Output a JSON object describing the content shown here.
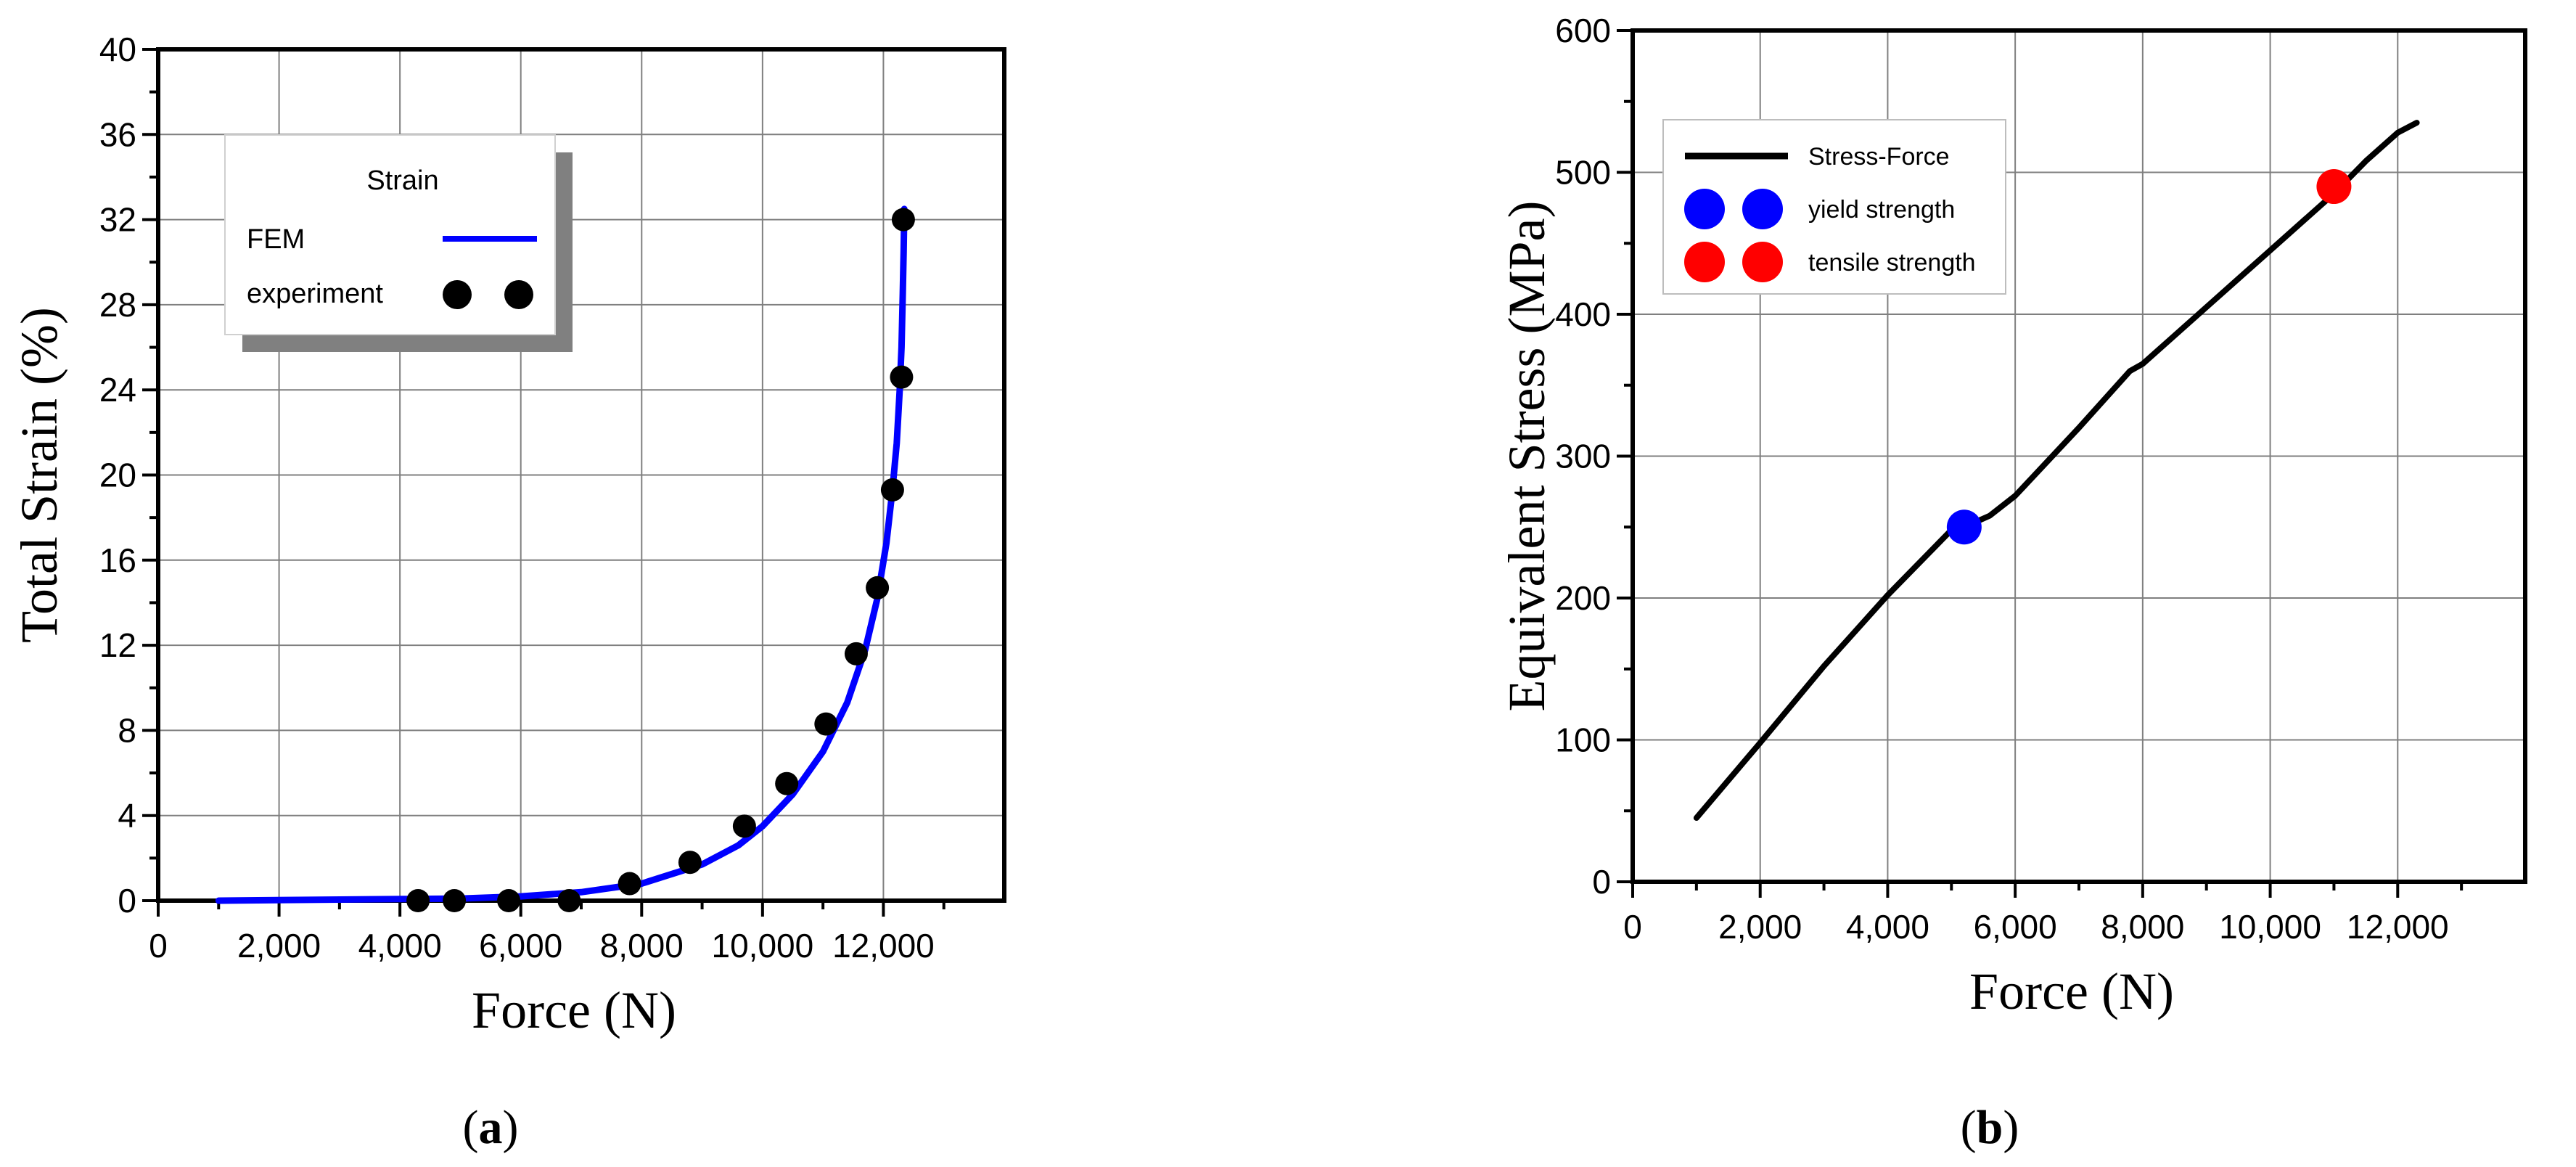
{
  "chart_data": [
    {
      "type": "line",
      "xlabel": "Force (N)",
      "ylabel": "Total Strain (%)",
      "xlim": [
        0,
        14000
      ],
      "ylim": [
        0,
        40
      ],
      "x_ticks": [
        0,
        2000,
        4000,
        6000,
        8000,
        10000,
        12000
      ],
      "x_tick_labels": [
        "0",
        "2,000",
        "4,000",
        "6,000",
        "8,000",
        "10,000",
        "12,000"
      ],
      "y_ticks": [
        0,
        4,
        8,
        12,
        16,
        20,
        24,
        28,
        32,
        36,
        40
      ],
      "y_tick_labels": [
        "0",
        "4",
        "8",
        "12",
        "16",
        "20",
        "24",
        "28",
        "32",
        "36",
        "40"
      ],
      "grid": true,
      "legend": {
        "title": "Strain",
        "placement": "top-left",
        "entries": [
          {
            "label": "FEM",
            "kind": "line",
            "color": "#0000ff"
          },
          {
            "label": "experiment",
            "kind": "marker",
            "color": "#000000"
          }
        ]
      },
      "series": [
        {
          "name": "FEM",
          "kind": "line",
          "color": "#0000ff",
          "x": [
            1000,
            3000,
            5000,
            6000,
            7000,
            8000,
            9000,
            9600,
            10000,
            10500,
            11000,
            11400,
            11700,
            11900,
            12050,
            12150,
            12220,
            12270,
            12300,
            12320,
            12335,
            12345
          ],
          "y": [
            0.0,
            0.05,
            0.1,
            0.2,
            0.4,
            0.8,
            1.7,
            2.6,
            3.5,
            5.0,
            7.0,
            9.3,
            11.8,
            14.2,
            16.8,
            19.3,
            21.5,
            24.0,
            26.0,
            28.5,
            30.5,
            32.5
          ]
        },
        {
          "name": "experiment",
          "kind": "scatter",
          "color": "#000000",
          "x": [
            4300,
            4900,
            5800,
            6800,
            7800,
            8800,
            9700,
            10400,
            11050,
            11550,
            11900,
            12150,
            12300,
            12330
          ],
          "y": [
            0.0,
            0.0,
            0.0,
            0.0,
            0.8,
            1.8,
            3.5,
            5.5,
            8.3,
            11.6,
            14.7,
            19.3,
            24.6,
            32.0
          ]
        }
      ],
      "caption": "(a)"
    },
    {
      "type": "line",
      "xlabel": "Force (N)",
      "ylabel": "Equivalent Stress (MPa)",
      "xlim": [
        0,
        14000
      ],
      "ylim": [
        0,
        600
      ],
      "x_ticks": [
        0,
        2000,
        4000,
        6000,
        8000,
        10000,
        12000
      ],
      "x_tick_labels": [
        "0",
        "2,000",
        "4,000",
        "6,000",
        "8,000",
        "10,000",
        "12,000"
      ],
      "y_ticks": [
        0,
        100,
        200,
        300,
        400,
        500,
        600
      ],
      "y_tick_labels": [
        "0",
        "100",
        "200",
        "300",
        "400",
        "500",
        "600"
      ],
      "grid": true,
      "legend": {
        "placement": "top-left",
        "entries": [
          {
            "label": "Stress-Force",
            "kind": "line",
            "color": "#000000"
          },
          {
            "label": "yield strength",
            "kind": "marker",
            "color": "#0000ff"
          },
          {
            "label": "tensile strength",
            "kind": "marker",
            "color": "#ff0000"
          }
        ]
      },
      "series": [
        {
          "name": "Stress-Force",
          "kind": "line",
          "color": "#000000",
          "x": [
            1000,
            2000,
            3000,
            4000,
            5000,
            5300,
            5600,
            6000,
            7000,
            7800,
            8000,
            8500,
            9000,
            9500,
            10000,
            10500,
            11000,
            11500,
            12000,
            12300
          ],
          "y": [
            45,
            98,
            152,
            202,
            248,
            252,
            258,
            272,
            320,
            360,
            365,
            385,
            405,
            425,
            445,
            465,
            485,
            508,
            528,
            535
          ]
        },
        {
          "name": "yield strength",
          "kind": "scatter",
          "color": "#0000ff",
          "x": [
            5200
          ],
          "y": [
            250
          ]
        },
        {
          "name": "tensile strength",
          "kind": "scatter",
          "color": "#ff0000",
          "x": [
            11000
          ],
          "y": [
            490
          ]
        }
      ],
      "caption": "(b)"
    }
  ]
}
